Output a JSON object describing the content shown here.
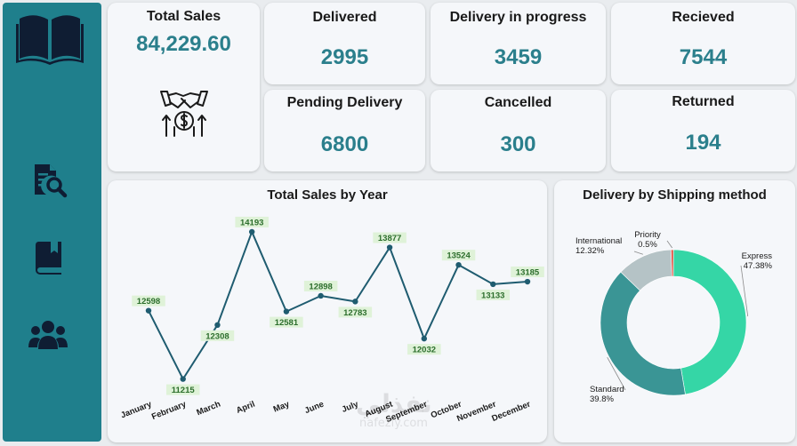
{
  "sidebar": {
    "logo_icon": "open-book-icon",
    "items": [
      {
        "icon": "report-search-icon"
      },
      {
        "icon": "closed-book-icon"
      },
      {
        "icon": "users-group-icon"
      }
    ],
    "colors": {
      "background": "#1f7f8c",
      "icon": "#0f1d33"
    }
  },
  "kpis": {
    "total_sales": {
      "label": "Total Sales",
      "value": "84,229.60",
      "icon": "handshake-dollar-icon"
    },
    "delivered": {
      "label": "Delivered",
      "value": "2995"
    },
    "in_progress": {
      "label": "Delivery in progress",
      "value": "3459"
    },
    "received": {
      "label": "Recieved",
      "value": "7544"
    },
    "pending": {
      "label": "Pending Delivery",
      "value": "6800"
    },
    "cancelled": {
      "label": "Cancelled",
      "value": "300"
    },
    "returned": {
      "label": "Returned",
      "value": "194"
    },
    "value_color": "#2b7f8c"
  },
  "watermark": {
    "arabic": "نفذلي",
    "latin": "nafezly.com"
  },
  "chart_data": [
    {
      "type": "line",
      "title": "Total Sales by Year",
      "categories": [
        "January",
        "February",
        "March",
        "April",
        "May",
        "June",
        "July",
        "August",
        "September",
        "October",
        "November",
        "December"
      ],
      "values": [
        12598,
        11215,
        12308,
        14193,
        12581,
        12898,
        12783,
        13877,
        12032,
        13524,
        13133,
        13185
      ],
      "labels": [
        "12598",
        "11215",
        "12308",
        "14193",
        "12581",
        "12898",
        "12783",
        "13877",
        "12032",
        "13524",
        "13133",
        "13185"
      ],
      "ylim": [
        11100,
        14300
      ],
      "grid": false,
      "line_color": "#1f5c70",
      "label_bg": "#dff2d8",
      "label_color": "#2c6e2c"
    },
    {
      "type": "pie",
      "donut": true,
      "title": "Delivery by Shipping method",
      "slices": [
        {
          "name": "Express",
          "value": 47.38,
          "label": "47.38%",
          "color": "#35d6a6"
        },
        {
          "name": "Standard",
          "value": 39.8,
          "label": "39.8%",
          "color": "#3a9595"
        },
        {
          "name": "International",
          "value": 12.32,
          "label": "12.32%",
          "color": "#b5c3c6"
        },
        {
          "name": "Priority",
          "value": 0.5,
          "label": "0.5%",
          "color": "#e04b3a"
        }
      ]
    }
  ]
}
